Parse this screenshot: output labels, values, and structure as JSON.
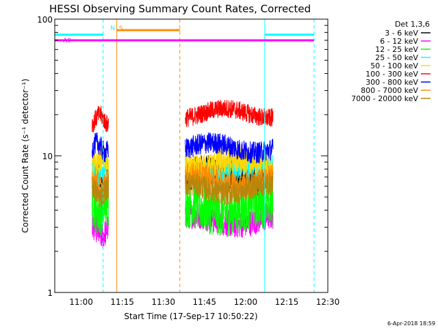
{
  "chart_data": {
    "type": "line",
    "title": "HESSI Observing Summary Count Rates, Corrected",
    "xlabel": "Start Time (17-Sep-17 10:50:22)",
    "ylabel": "Corrected Count Rate (s⁻¹ detector⁻¹)",
    "footer": "6-Apr-2018 18:59",
    "y_scale": "log",
    "ylim": [
      1,
      100
    ],
    "xlim": [
      "10:50:22",
      "12:30:00"
    ],
    "y_ticks": [
      {
        "value": 1,
        "label": "1"
      },
      {
        "value": 10,
        "label": "10"
      },
      {
        "value": 100,
        "label": "100"
      }
    ],
    "x_ticks": [
      "11:00",
      "11:15",
      "11:30",
      "11:45",
      "12:00",
      "12:15",
      "12:30"
    ],
    "legend": {
      "placement": "right, outside plot",
      "title": "Det 1,3,6",
      "entries": [
        {
          "label": "3 - 6 keV",
          "color": "#000000"
        },
        {
          "label": "6 - 12 keV",
          "color": "#ff00ff"
        },
        {
          "label": "12 - 25 keV",
          "color": "#00ff00"
        },
        {
          "label": "25 - 50 keV",
          "color": "#00ffff"
        },
        {
          "label": "50 - 100 keV",
          "color": "#ffd700"
        },
        {
          "label": "100 - 300 keV",
          "color": "#ff0000"
        },
        {
          "label": "300 - 800 keV",
          "color": "#0000ff"
        },
        {
          "label": "800 - 7000 keV",
          "color": "#ff8c00"
        },
        {
          "label": "7000 - 20000 keV",
          "color": "#b8860b"
        }
      ]
    },
    "flags": [
      {
        "label": "A0",
        "color": "#ff00ff",
        "level": 70,
        "start": "10:50:22",
        "end": "12:25:00"
      },
      {
        "label": "",
        "color": "#00ffff",
        "level": 77,
        "start": "10:50:22",
        "end": "11:08:00"
      },
      {
        "label": "",
        "color": "#00ffff",
        "level": 77,
        "start": "12:07:00",
        "end": "12:25:00"
      },
      {
        "label": "S",
        "color": "#ff8c00",
        "level": 83,
        "start": "11:13:00",
        "end": "11:36:00"
      },
      {
        "label": "N",
        "color": "#00ffff",
        "level": 83,
        "start": "11:10:00",
        "end": "11:10:00"
      }
    ],
    "vlines": [
      {
        "time": "11:08:00",
        "color": "#00ffff",
        "style": "dashed"
      },
      {
        "time": "11:13:00",
        "color": "#ff8c00",
        "style": "solid"
      },
      {
        "time": "11:36:00",
        "color": "#ff8c00",
        "style": "dashed"
      },
      {
        "time": "12:07:00",
        "color": "#00ffff",
        "style": "solid"
      },
      {
        "time": "12:25:00",
        "color": "#00ffff",
        "style": "dashed"
      }
    ],
    "segments": [
      {
        "start": "11:04:00",
        "end": "11:10:00"
      },
      {
        "start": "11:38:00",
        "end": "12:10:00"
      }
    ],
    "series": [
      {
        "name": "3 - 6 keV",
        "color": "#000000",
        "levels": [
          6.5,
          7.2
        ],
        "spread": 0.12
      },
      {
        "name": "6 - 12 keV",
        "color": "#ff00ff",
        "levels": [
          2.8,
          3.4
        ],
        "spread": 0.1
      },
      {
        "name": "12 - 25 keV",
        "color": "#00ff00",
        "levels": [
          4.2,
          4.2
        ],
        "spread": 0.18
      },
      {
        "name": "25 - 50 keV",
        "color": "#00ffff",
        "levels": [
          7.8,
          8.0
        ],
        "spread": 0.1
      },
      {
        "name": "50 - 100 keV",
        "color": "#ffd700",
        "levels": [
          9.0,
          8.8
        ],
        "spread": 0.1
      },
      {
        "name": "100 - 300 keV",
        "color": "#ff0000",
        "levels": [
          18.5,
          20.5
        ],
        "spread": 0.07
      },
      {
        "name": "300 - 800 keV",
        "color": "#0000ff",
        "levels": [
          11.5,
          11.5
        ],
        "spread": 0.08
      },
      {
        "name": "800 - 7000 keV",
        "color": "#ff8c00",
        "levels": [
          6.2,
          6.6
        ],
        "spread": 0.1
      },
      {
        "name": "7000 - 20000 keV",
        "color": "#b8860b",
        "levels": [
          5.5,
          5.8
        ],
        "spread": 0.09
      }
    ]
  }
}
